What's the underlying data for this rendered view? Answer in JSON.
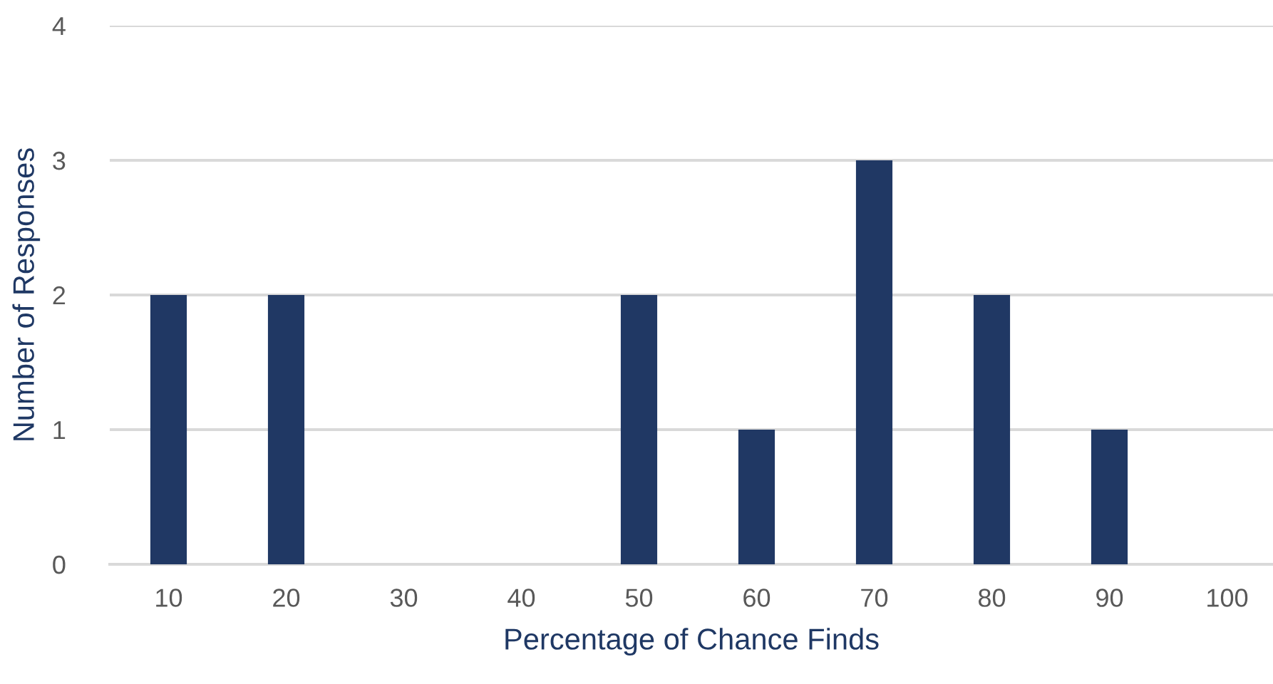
{
  "chart_data": {
    "type": "bar",
    "xlabel": "Percentage of Chance Finds",
    "ylabel": "Number of Responses",
    "categories": [
      "10",
      "20",
      "30",
      "40",
      "50",
      "60",
      "70",
      "80",
      "90",
      "100"
    ],
    "values": [
      2,
      2,
      0,
      0,
      2,
      1,
      3,
      2,
      1,
      0
    ],
    "color": "#203864",
    "ylim": [
      0,
      4
    ],
    "yticks": [
      0,
      1,
      2,
      3,
      4
    ],
    "grid": "y",
    "legend": false
  }
}
